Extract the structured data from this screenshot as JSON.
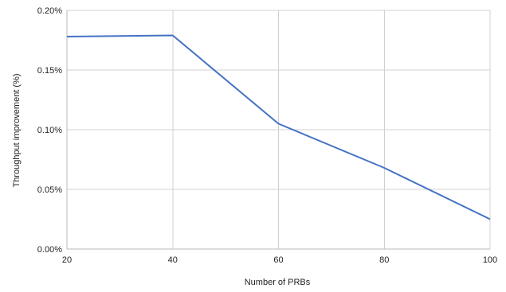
{
  "chart_data": {
    "type": "line",
    "title": "",
    "xlabel": "Number of PRBs",
    "ylabel": "Throughput improvement (%)",
    "x": [
      20,
      40,
      60,
      80,
      100
    ],
    "series": [
      {
        "values": [
          0.178,
          0.179,
          0.105,
          0.068,
          0.025
        ],
        "color": "#4472c4"
      }
    ],
    "xlim": [
      20,
      100
    ],
    "ylim": [
      0,
      0.2
    ],
    "x_ticks": [
      20,
      40,
      60,
      80,
      100
    ],
    "x_tick_labels": [
      "20",
      "40",
      "60",
      "80",
      "100"
    ],
    "y_ticks": [
      0,
      0.05,
      0.1,
      0.15,
      0.2
    ],
    "y_tick_labels": [
      "0.00%",
      "0.05%",
      "0.10%",
      "0.15%",
      "0.20%"
    ],
    "grid": true,
    "legend": "none",
    "colors": {
      "grid": "#d0d0d0",
      "axis": "#b8b8b8",
      "text": "#222222"
    }
  }
}
